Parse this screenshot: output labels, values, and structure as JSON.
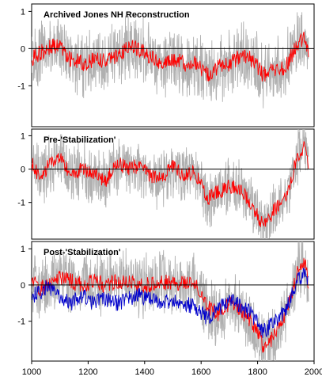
{
  "chart_data": [
    {
      "type": "line",
      "title": "Archived Jones NH Reconstruction",
      "xlim": [
        1000,
        2000
      ],
      "ylim": [
        -2.1,
        1.2
      ],
      "yticks": [
        "1",
        "0",
        "-1"
      ],
      "zero_line": true,
      "series": [
        {
          "role": "annual",
          "color": "#b0b0b0",
          "x": [
            1000,
            1030,
            1060,
            1100,
            1140,
            1180,
            1220,
            1260,
            1300,
            1340,
            1380,
            1420,
            1460,
            1500,
            1540,
            1580,
            1620,
            1660,
            1700,
            1740,
            1780,
            1820,
            1860,
            1900,
            1940,
            1970,
            1980
          ],
          "y": [
            -0.3,
            -0.1,
            0.0,
            0.1,
            -0.3,
            -0.4,
            -0.3,
            -0.3,
            -0.2,
            0.0,
            0.0,
            -0.2,
            -0.4,
            -0.3,
            -0.4,
            -0.4,
            -0.7,
            -0.5,
            -0.4,
            -0.2,
            -0.3,
            -0.7,
            -0.6,
            -0.5,
            0.1,
            0.3,
            -0.1
          ]
        },
        {
          "role": "smoothed",
          "color": "#ff0000",
          "x": [
            1000,
            1030,
            1060,
            1100,
            1140,
            1180,
            1220,
            1260,
            1300,
            1340,
            1380,
            1420,
            1460,
            1500,
            1540,
            1580,
            1620,
            1660,
            1700,
            1740,
            1780,
            1820,
            1860,
            1900,
            1940,
            1970,
            1980
          ],
          "y": [
            -0.3,
            -0.1,
            0.0,
            0.1,
            -0.3,
            -0.4,
            -0.3,
            -0.3,
            -0.2,
            0.0,
            0.0,
            -0.2,
            -0.4,
            -0.3,
            -0.4,
            -0.4,
            -0.7,
            -0.5,
            -0.4,
            -0.2,
            -0.3,
            -0.7,
            -0.6,
            -0.5,
            0.1,
            0.3,
            -0.1
          ]
        }
      ]
    },
    {
      "type": "line",
      "title": "Pre-'Stabilization'",
      "xlim": [
        1000,
        2000
      ],
      "ylim": [
        -2.1,
        1.2
      ],
      "yticks": [
        "1",
        "0",
        "-1"
      ],
      "zero_line": true,
      "series": [
        {
          "role": "annual",
          "color": "#b0b0b0",
          "x": [
            1000,
            1030,
            1060,
            1100,
            1140,
            1180,
            1220,
            1260,
            1300,
            1340,
            1380,
            1420,
            1460,
            1500,
            1540,
            1580,
            1620,
            1660,
            1700,
            1740,
            1780,
            1820,
            1860,
            1900,
            1940,
            1970,
            1980
          ],
          "y": [
            0.2,
            -0.3,
            0.1,
            0.3,
            -0.2,
            0.0,
            -0.1,
            -0.4,
            0.2,
            0.0,
            0.1,
            -0.2,
            -0.3,
            0.1,
            -0.2,
            -0.1,
            -0.9,
            -0.7,
            -0.5,
            -0.6,
            -1.1,
            -1.7,
            -1.2,
            -0.9,
            0.4,
            0.7,
            0.1
          ]
        },
        {
          "role": "smoothed",
          "color": "#ff0000",
          "x": [
            1000,
            1030,
            1060,
            1100,
            1140,
            1180,
            1220,
            1260,
            1300,
            1340,
            1380,
            1420,
            1460,
            1500,
            1540,
            1580,
            1620,
            1660,
            1700,
            1740,
            1780,
            1820,
            1860,
            1900,
            1940,
            1970,
            1980
          ],
          "y": [
            0.2,
            -0.3,
            0.1,
            0.3,
            -0.2,
            0.0,
            -0.1,
            -0.4,
            0.2,
            0.0,
            0.1,
            -0.2,
            -0.3,
            0.1,
            -0.2,
            -0.1,
            -0.9,
            -0.7,
            -0.5,
            -0.6,
            -1.1,
            -1.7,
            -1.2,
            -0.9,
            0.4,
            0.7,
            0.1
          ]
        }
      ]
    },
    {
      "type": "line",
      "title": "Post-'Stabilization'",
      "xlim": [
        1000,
        2000
      ],
      "ylim": [
        -2.1,
        1.2
      ],
      "yticks": [
        "1",
        "0",
        "-1"
      ],
      "xticks": [
        1000,
        1200,
        1400,
        1600,
        1800,
        2000
      ],
      "zero_line": true,
      "series": [
        {
          "role": "annual",
          "color": "#b0b0b0",
          "x": [
            1000,
            1030,
            1060,
            1100,
            1140,
            1180,
            1220,
            1260,
            1300,
            1340,
            1380,
            1420,
            1460,
            1500,
            1540,
            1580,
            1620,
            1660,
            1700,
            1740,
            1780,
            1820,
            1860,
            1900,
            1940,
            1970,
            1980
          ],
          "y": [
            0.1,
            -0.1,
            0.0,
            0.2,
            0.1,
            0.0,
            0.1,
            0.0,
            0.1,
            0.1,
            0.0,
            0.0,
            0.1,
            0.0,
            0.1,
            0.0,
            -0.6,
            -0.8,
            -0.5,
            -0.7,
            -1.0,
            -1.7,
            -1.4,
            -0.8,
            0.3,
            0.6,
            0.0
          ]
        },
        {
          "role": "smoothed",
          "color": "#ff0000",
          "x": [
            1000,
            1030,
            1060,
            1100,
            1140,
            1180,
            1220,
            1260,
            1300,
            1340,
            1380,
            1420,
            1460,
            1500,
            1540,
            1580,
            1620,
            1660,
            1700,
            1740,
            1780,
            1820,
            1860,
            1900,
            1940,
            1970,
            1980
          ],
          "y": [
            0.1,
            -0.1,
            0.0,
            0.2,
            0.1,
            0.0,
            0.1,
            0.0,
            0.1,
            0.1,
            0.0,
            0.0,
            0.1,
            0.0,
            0.1,
            0.0,
            -0.6,
            -0.8,
            -0.5,
            -0.7,
            -1.0,
            -1.7,
            -1.4,
            -0.8,
            0.3,
            0.6,
            0.0
          ]
        },
        {
          "role": "comparison",
          "color": "#0000cc",
          "x": [
            1000,
            1030,
            1060,
            1100,
            1140,
            1180,
            1220,
            1260,
            1300,
            1340,
            1380,
            1420,
            1460,
            1500,
            1540,
            1580,
            1620,
            1660,
            1700,
            1740,
            1780,
            1820,
            1860,
            1900,
            1940,
            1970,
            1980
          ],
          "y": [
            -0.3,
            -0.2,
            0.0,
            -0.4,
            -0.5,
            -0.3,
            -0.5,
            -0.4,
            -0.5,
            -0.4,
            -0.3,
            -0.4,
            -0.5,
            -0.4,
            -0.5,
            -0.6,
            -0.9,
            -0.7,
            -0.4,
            -0.6,
            -0.8,
            -1.3,
            -1.0,
            -0.7,
            0.1,
            0.3,
            0.1
          ]
        }
      ]
    }
  ]
}
